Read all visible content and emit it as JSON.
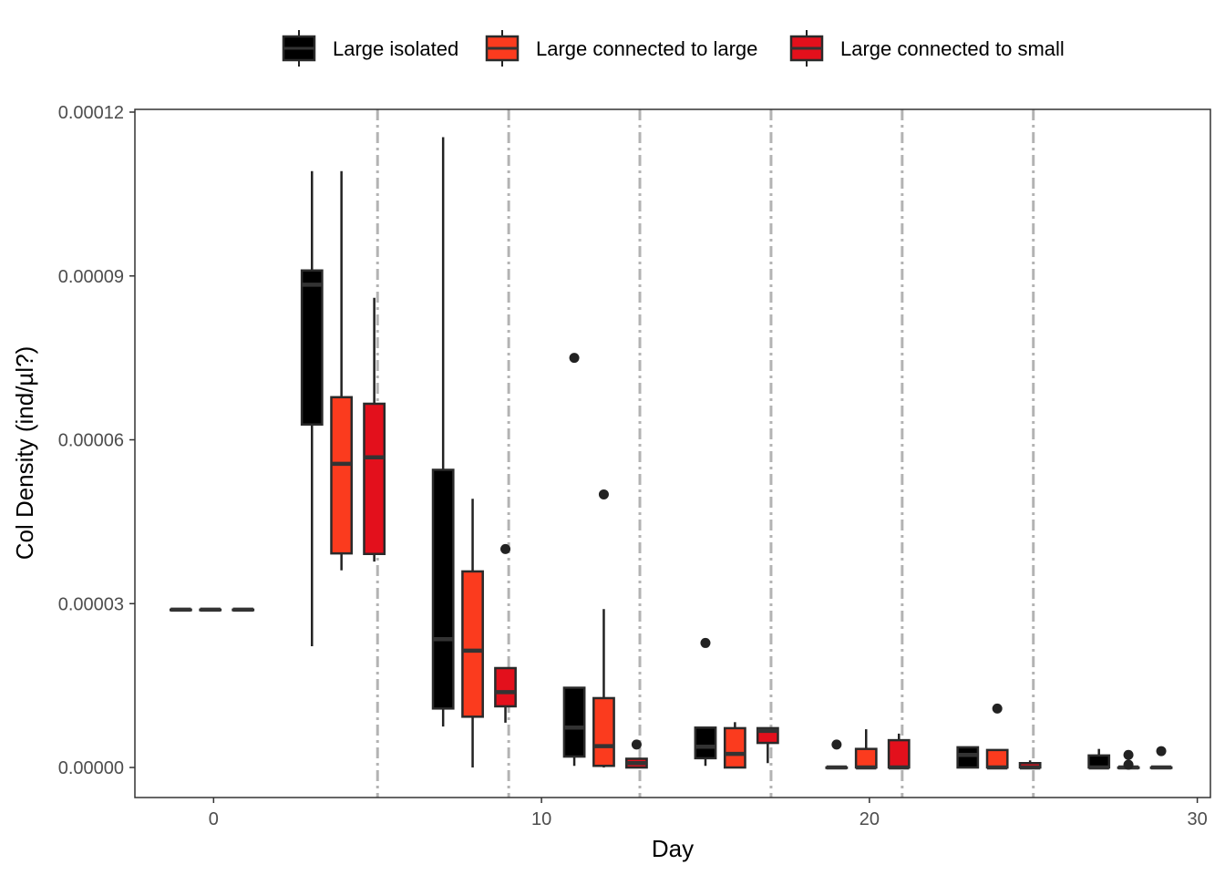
{
  "chart_data": {
    "type": "boxplot",
    "xlabel": "Day",
    "ylabel": "Col Density (ind/µl?)",
    "xlim": [
      -2.4,
      30.4
    ],
    "ylim": [
      -5.5e-06,
      0.0001205
    ],
    "x_ticks": [
      0,
      10,
      20,
      30
    ],
    "x_tick_labels": [
      "0",
      "10",
      "20",
      "30"
    ],
    "y_ticks": [
      0,
      3e-05,
      6e-05,
      9e-05,
      0.00012
    ],
    "y_tick_labels": [
      "0.00000",
      "0.00003",
      "0.00006",
      "0.00009",
      "0.00012"
    ],
    "grid": false,
    "legend_position": "top",
    "vlines": [
      5,
      9,
      13,
      17,
      21,
      25
    ],
    "vline_color": "#b3b3b3",
    "series": [
      {
        "name": "Large isolated",
        "color": "#000000",
        "boxes": [
          {
            "x": 0,
            "min": 2.89e-05,
            "q1": 2.89e-05,
            "median": 2.89e-05,
            "q3": 2.89e-05,
            "max": 2.89e-05,
            "outliers": []
          },
          {
            "x": 4,
            "min": 2.22e-05,
            "q1": 6.28e-05,
            "median": 8.84e-05,
            "q3": 9.1e-05,
            "max": 0.0001092,
            "outliers": []
          },
          {
            "x": 8,
            "min": 7.5e-06,
            "q1": 1.08e-05,
            "median": 2.35e-05,
            "q3": 5.45e-05,
            "max": 0.0001154,
            "outliers": []
          },
          {
            "x": 12,
            "min": 3e-07,
            "q1": 2e-06,
            "median": 7.3e-06,
            "q3": 1.46e-05,
            "max": 1.46e-05,
            "outliers": [
              7.5e-05
            ]
          },
          {
            "x": 16,
            "min": 3e-07,
            "q1": 1.7e-06,
            "median": 3.8e-06,
            "q3": 7.3e-06,
            "max": 7.3e-06,
            "outliers": [
              2.28e-05
            ]
          },
          {
            "x": 20,
            "min": 0.0,
            "q1": 0.0,
            "median": 0.0,
            "q3": 0.0,
            "max": 0.0,
            "outliers": [
              4.2e-06
            ]
          },
          {
            "x": 24,
            "min": 0.0,
            "q1": 0.0,
            "median": 2.3e-06,
            "q3": 3.7e-06,
            "max": 3.7e-06,
            "outliers": []
          },
          {
            "x": 28,
            "min": 0.0,
            "q1": 0.0,
            "median": 0.0,
            "q3": 2.2e-06,
            "max": 3.4e-06,
            "outliers": []
          }
        ]
      },
      {
        "name": "Large connected to large",
        "color": "#fb3b1e",
        "boxes": [
          {
            "x": 0,
            "min": 2.89e-05,
            "q1": 2.89e-05,
            "median": 2.89e-05,
            "q3": 2.89e-05,
            "max": 2.89e-05,
            "outliers": []
          },
          {
            "x": 4,
            "min": 3.61e-05,
            "q1": 3.92e-05,
            "median": 5.56e-05,
            "q3": 6.78e-05,
            "max": 0.0001092,
            "outliers": []
          },
          {
            "x": 8,
            "min": 0.0,
            "q1": 9.3e-06,
            "median": 2.14e-05,
            "q3": 3.59e-05,
            "max": 4.92e-05,
            "outliers": []
          },
          {
            "x": 12,
            "min": 0.0,
            "q1": 3e-07,
            "median": 3.9e-06,
            "q3": 1.27e-05,
            "max": 2.9e-05,
            "outliers": [
              5e-05
            ]
          },
          {
            "x": 16,
            "min": 0.0,
            "q1": 0.0,
            "median": 2.5e-06,
            "q3": 7.2e-06,
            "max": 8.3e-06,
            "outliers": []
          },
          {
            "x": 20,
            "min": 0.0,
            "q1": 0.0,
            "median": 0.0,
            "q3": 3.4e-06,
            "max": 7e-06,
            "outliers": []
          },
          {
            "x": 24,
            "min": 0.0,
            "q1": 0.0,
            "median": 0.0,
            "q3": 3.2e-06,
            "max": 3.2e-06,
            "outliers": [
              1.08e-05
            ]
          },
          {
            "x": 28,
            "min": 0.0,
            "q1": 0.0,
            "median": 0.0,
            "q3": 0.0,
            "max": 0.0,
            "outliers": [
              2.3e-06,
              5e-07
            ]
          }
        ]
      },
      {
        "name": "Large connected to small",
        "color": "#e3101c",
        "boxes": [
          {
            "x": 0,
            "min": 2.89e-05,
            "q1": 2.89e-05,
            "median": 2.89e-05,
            "q3": 2.89e-05,
            "max": 2.89e-05,
            "outliers": []
          },
          {
            "x": 4,
            "min": 3.77e-05,
            "q1": 3.91e-05,
            "median": 5.68e-05,
            "q3": 6.66e-05,
            "max": 8.6e-05,
            "outliers": []
          },
          {
            "x": 8,
            "min": 8.2e-06,
            "q1": 1.12e-05,
            "median": 1.38e-05,
            "q3": 1.82e-05,
            "max": 1.82e-05,
            "outliers": [
              4e-05
            ]
          },
          {
            "x": 12,
            "min": 0.0,
            "q1": 0.0,
            "median": 8e-07,
            "q3": 1.6e-06,
            "max": 1.6e-06,
            "outliers": [
              4.2e-06
            ]
          },
          {
            "x": 16,
            "min": 8e-07,
            "q1": 4.5e-06,
            "median": 6.7e-06,
            "q3": 7.2e-06,
            "max": 7.2e-06,
            "outliers": []
          },
          {
            "x": 20,
            "min": 0.0,
            "q1": 0.0,
            "median": 0.0,
            "q3": 5e-06,
            "max": 6.2e-06,
            "outliers": []
          },
          {
            "x": 24,
            "min": 0.0,
            "q1": 0.0,
            "median": 0.0,
            "q3": 8e-07,
            "max": 1.3e-06,
            "outliers": []
          },
          {
            "x": 28,
            "min": 0.0,
            "q1": 0.0,
            "median": 0.0,
            "q3": 0.0,
            "max": 0.0,
            "outliers": [
              3e-06
            ]
          }
        ]
      }
    ]
  }
}
